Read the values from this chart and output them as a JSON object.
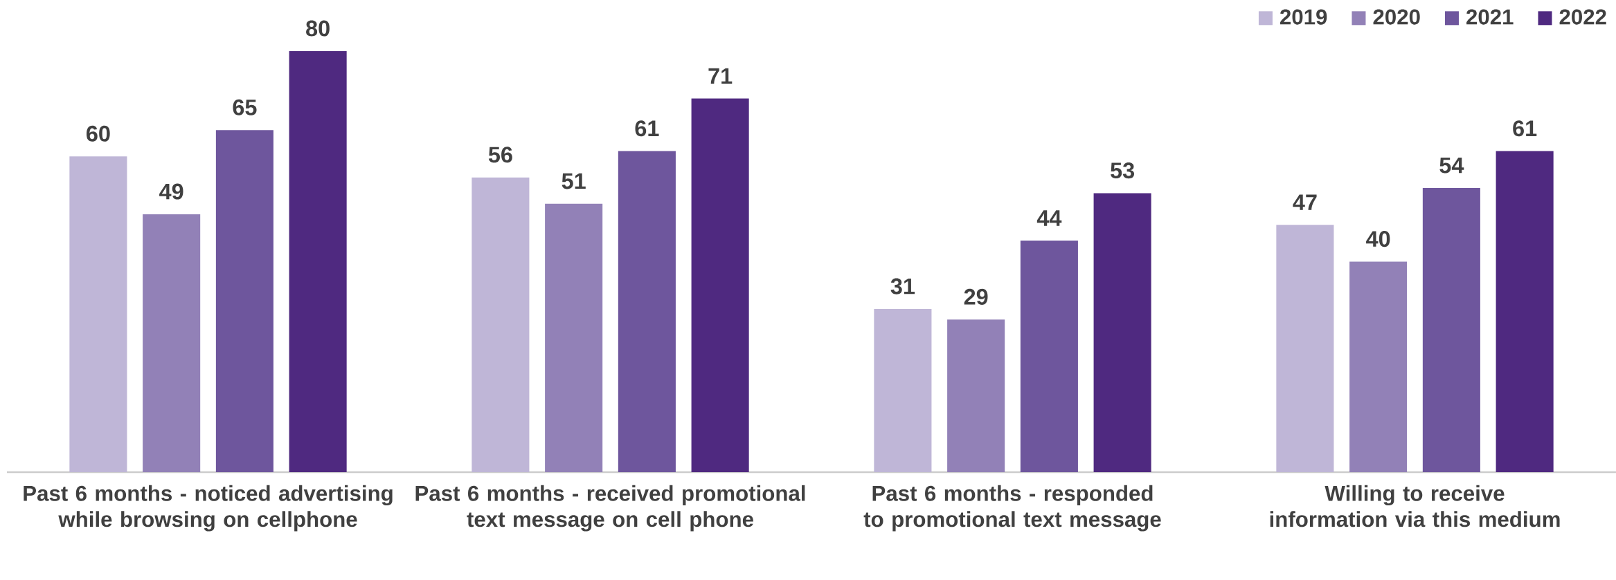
{
  "chart_data": {
    "type": "bar",
    "categories": [
      "Past 6 months - noticed advertising while browsing on cellphone",
      "Past 6 months - received promotional text message on cell phone",
      "Past 6 months - responded to promotional text message",
      "Willing to receive information via this medium"
    ],
    "series": [
      {
        "name": "2019",
        "color": "#bfb6d7",
        "values": [
          60,
          56,
          31,
          47
        ]
      },
      {
        "name": "2020",
        "color": "#9281b7",
        "values": [
          49,
          51,
          29,
          40
        ]
      },
      {
        "name": "2021",
        "color": "#6e569d",
        "values": [
          65,
          61,
          44,
          54
        ]
      },
      {
        "name": "2022",
        "color": "#4f2980",
        "values": [
          80,
          71,
          53,
          61
        ]
      }
    ],
    "data_labels": true,
    "legend": "top right",
    "tick_labels": "x"
  }
}
